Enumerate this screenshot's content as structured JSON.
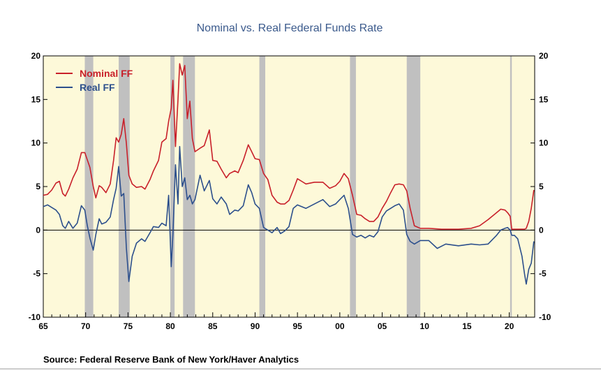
{
  "chart_data": {
    "type": "line",
    "title": "Nominal vs. Real Federal Funds Rate",
    "source": "Source:  Federal Reserve Bank of New York/Haver Analytics",
    "xlim": [
      1965,
      2023
    ],
    "ylim": [
      -10,
      20
    ],
    "y_ticks": [
      20,
      15,
      10,
      5,
      0,
      -5,
      -10
    ],
    "x_ticks": [
      {
        "label": "65",
        "value": 1965
      },
      {
        "label": "70",
        "value": 1970
      },
      {
        "label": "75",
        "value": 1975
      },
      {
        "label": "80",
        "value": 1980
      },
      {
        "label": "85",
        "value": 1985
      },
      {
        "label": "90",
        "value": 1990
      },
      {
        "label": "95",
        "value": 1995
      },
      {
        "label": "00",
        "value": 2000
      },
      {
        "label": "05",
        "value": 2005
      },
      {
        "label": "10",
        "value": 2010
      },
      {
        "label": "15",
        "value": 2015
      },
      {
        "label": "20",
        "value": 2020
      }
    ],
    "legend_position": "top-left",
    "plot_background": "#fdf9d9",
    "recession_color": "#c0c0c0",
    "recessions": [
      [
        1969.9,
        1970.9
      ],
      [
        1973.9,
        1975.2
      ],
      [
        1980.0,
        1980.5
      ],
      [
        1981.5,
        1982.9
      ],
      [
        1990.5,
        1991.2
      ],
      [
        2001.2,
        2001.9
      ],
      [
        2007.9,
        2009.5
      ],
      [
        2020.1,
        2020.3
      ]
    ],
    "series": [
      {
        "name": "Nominal FF",
        "color": "#c8202a",
        "x": [
          1965.0,
          1965.5,
          1966.0,
          1966.5,
          1966.9,
          1967.3,
          1967.6,
          1968.0,
          1968.5,
          1969.0,
          1969.5,
          1969.9,
          1970.5,
          1970.9,
          1971.2,
          1971.6,
          1971.9,
          1972.4,
          1972.9,
          1973.3,
          1973.6,
          1973.9,
          1974.2,
          1974.5,
          1974.8,
          1975.1,
          1975.5,
          1976.0,
          1976.6,
          1977.0,
          1977.6,
          1978.0,
          1978.6,
          1979.0,
          1979.5,
          1979.8,
          1980.1,
          1980.3,
          1980.6,
          1980.9,
          1981.1,
          1981.4,
          1981.7,
          1982.0,
          1982.3,
          1982.6,
          1982.9,
          1983.5,
          1984.0,
          1984.6,
          1985.0,
          1985.5,
          1986.0,
          1986.6,
          1987.0,
          1987.6,
          1988.0,
          1988.6,
          1989.2,
          1989.6,
          1990.0,
          1990.5,
          1991.0,
          1991.5,
          1992.0,
          1992.6,
          1993.0,
          1993.5,
          1994.0,
          1994.5,
          1995.0,
          1995.5,
          1996.0,
          1997.0,
          1998.0,
          1998.8,
          1999.5,
          2000.0,
          2000.5,
          2001.0,
          2001.5,
          2002.0,
          2002.5,
          2003.0,
          2003.5,
          2004.0,
          2004.5,
          2005.0,
          2005.5,
          2006.0,
          2006.5,
          2007.0,
          2007.5,
          2007.9,
          2008.3,
          2008.8,
          2009.5,
          2010.5,
          2012.0,
          2014.0,
          2015.5,
          2016.5,
          2017.5,
          2018.5,
          2019.0,
          2019.5,
          2019.8,
          2020.1,
          2020.3,
          2021.0,
          2021.8,
          2022.0,
          2022.3,
          2022.6,
          2022.9
        ],
        "y": [
          4.0,
          4.1,
          4.6,
          5.4,
          5.6,
          4.2,
          3.9,
          4.7,
          6.0,
          7.0,
          8.9,
          8.9,
          7.2,
          5.0,
          3.7,
          5.1,
          4.9,
          4.3,
          5.3,
          8.0,
          10.6,
          10.1,
          11.0,
          12.8,
          10.0,
          6.3,
          5.3,
          4.9,
          5.0,
          4.7,
          5.8,
          6.8,
          8.0,
          10.1,
          10.5,
          12.5,
          14.0,
          17.2,
          9.6,
          15.0,
          19.1,
          17.8,
          18.9,
          12.8,
          14.8,
          10.5,
          9.0,
          9.4,
          9.7,
          11.5,
          8.0,
          7.9,
          7.0,
          6.0,
          6.5,
          6.8,
          6.6,
          8.0,
          9.8,
          9.0,
          8.2,
          8.1,
          6.5,
          5.8,
          4.0,
          3.2,
          3.0,
          3.0,
          3.4,
          4.6,
          5.9,
          5.6,
          5.3,
          5.5,
          5.5,
          4.8,
          5.1,
          5.6,
          6.5,
          5.9,
          4.0,
          1.8,
          1.7,
          1.3,
          1.0,
          1.0,
          1.5,
          2.5,
          3.3,
          4.3,
          5.2,
          5.3,
          5.2,
          4.5,
          2.5,
          0.5,
          0.2,
          0.2,
          0.1,
          0.1,
          0.2,
          0.5,
          1.2,
          2.0,
          2.4,
          2.3,
          2.0,
          1.6,
          0.1,
          0.1,
          0.1,
          0.2,
          1.0,
          2.5,
          4.6
        ]
      },
      {
        "name": "Real FF",
        "color": "#2c4f8c",
        "x": [
          1965.0,
          1965.5,
          1966.0,
          1966.5,
          1966.9,
          1967.3,
          1967.6,
          1968.0,
          1968.5,
          1969.0,
          1969.5,
          1969.9,
          1970.2,
          1970.5,
          1970.9,
          1971.2,
          1971.6,
          1971.9,
          1972.4,
          1972.9,
          1973.3,
          1973.6,
          1973.9,
          1974.2,
          1974.5,
          1974.8,
          1975.1,
          1975.5,
          1976.0,
          1976.6,
          1977.0,
          1977.6,
          1978.0,
          1978.6,
          1979.0,
          1979.5,
          1979.8,
          1980.1,
          1980.3,
          1980.6,
          1980.9,
          1981.1,
          1981.4,
          1981.7,
          1982.0,
          1982.3,
          1982.6,
          1982.9,
          1983.5,
          1984.0,
          1984.6,
          1985.0,
          1985.5,
          1986.0,
          1986.6,
          1987.0,
          1987.6,
          1988.0,
          1988.6,
          1989.2,
          1989.6,
          1990.0,
          1990.5,
          1991.0,
          1991.5,
          1992.0,
          1992.6,
          1993.0,
          1993.5,
          1994.0,
          1994.5,
          1995.0,
          1995.5,
          1996.0,
          1997.0,
          1998.0,
          1998.8,
          1999.5,
          2000.0,
          2000.5,
          2001.0,
          2001.5,
          2002.0,
          2002.5,
          2003.0,
          2003.5,
          2004.0,
          2004.5,
          2005.0,
          2005.5,
          2006.0,
          2006.5,
          2007.0,
          2007.5,
          2007.9,
          2008.3,
          2008.8,
          2009.5,
          2010.5,
          2011.5,
          2012.5,
          2014.0,
          2015.5,
          2016.5,
          2017.5,
          2018.5,
          2019.0,
          2019.5,
          2019.8,
          2020.1,
          2020.3,
          2020.6,
          2021.0,
          2021.5,
          2021.8,
          2022.0,
          2022.3,
          2022.6,
          2022.9
        ],
        "y": [
          2.7,
          2.9,
          2.6,
          2.3,
          1.8,
          0.5,
          0.2,
          1.0,
          0.2,
          0.8,
          2.8,
          2.3,
          0.5,
          -0.9,
          -2.3,
          -0.5,
          1.3,
          0.7,
          0.9,
          1.5,
          3.5,
          4.8,
          7.3,
          3.9,
          4.2,
          -2.0,
          -5.9,
          -3.0,
          -1.5,
          -1.0,
          -1.3,
          -0.3,
          0.4,
          0.3,
          0.8,
          0.5,
          4.0,
          -4.2,
          -0.5,
          7.5,
          3.0,
          9.6,
          5.0,
          6.0,
          3.5,
          4.0,
          3.0,
          3.5,
          6.3,
          4.5,
          5.7,
          3.6,
          3.0,
          3.8,
          3.0,
          1.8,
          2.3,
          2.2,
          2.8,
          5.2,
          4.3,
          3.0,
          2.5,
          0.3,
          0.0,
          -0.3,
          0.3,
          -0.4,
          -0.1,
          0.4,
          2.5,
          2.9,
          2.7,
          2.5,
          3.0,
          3.5,
          2.7,
          3.0,
          3.5,
          4.0,
          2.5,
          -0.5,
          -0.8,
          -0.6,
          -0.9,
          -0.6,
          -0.8,
          -0.2,
          1.5,
          2.2,
          2.5,
          2.8,
          3.0,
          2.3,
          -0.5,
          -1.3,
          -1.6,
          -1.2,
          -1.2,
          -2.1,
          -1.6,
          -1.8,
          -1.6,
          -1.7,
          -1.6,
          -0.6,
          0.0,
          0.2,
          0.3,
          0.0,
          -0.6,
          -0.6,
          -1.0,
          -3.0,
          -5.0,
          -6.2,
          -4.5,
          -3.8,
          -1.3
        ]
      }
    ]
  }
}
